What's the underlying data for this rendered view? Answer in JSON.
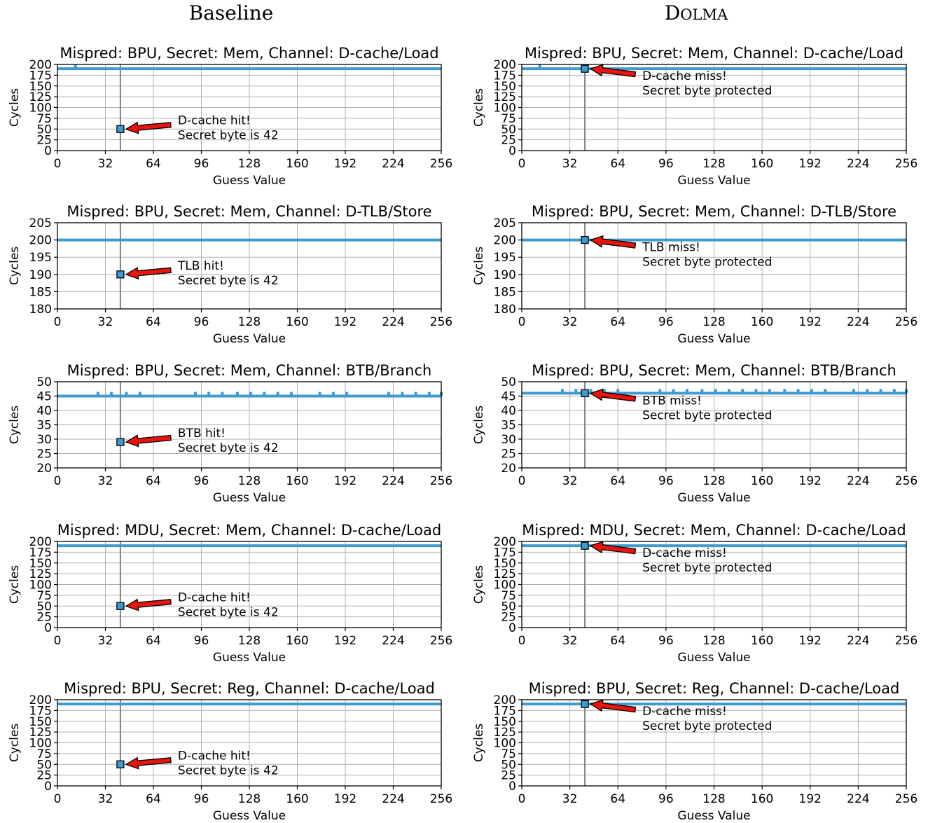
{
  "column_titles": {
    "left": "Baseline",
    "right": "DOLMA"
  },
  "chart_data": [
    {
      "type": "line",
      "col": 0,
      "row": 0,
      "title": "Mispred: BPU, Secret: Mem, Channel: D-cache/Load",
      "xlabel": "Guess Value",
      "ylabel": "Cycles",
      "xlim": [
        0,
        256
      ],
      "ylim": [
        0,
        200
      ],
      "xticks": [
        0,
        32,
        64,
        96,
        128,
        160,
        192,
        224,
        256
      ],
      "yticks": [
        0,
        25,
        50,
        75,
        100,
        125,
        150,
        175,
        200
      ],
      "baseline_value": 190,
      "bump_x": [
        12
      ],
      "highlight": {
        "x": 42,
        "y": 50
      },
      "annotation": [
        "D-cache hit!",
        "Secret byte is 42"
      ],
      "grid": true
    },
    {
      "type": "line",
      "col": 1,
      "row": 0,
      "title": "Mispred: BPU, Secret: Mem, Channel: D-cache/Load",
      "xlabel": "Guess Value",
      "ylabel": "Cycles",
      "xlim": [
        0,
        256
      ],
      "ylim": [
        0,
        200
      ],
      "xticks": [
        0,
        32,
        64,
        96,
        128,
        160,
        192,
        224,
        256
      ],
      "yticks": [
        0,
        25,
        50,
        75,
        100,
        125,
        150,
        175,
        200
      ],
      "baseline_value": 190,
      "bump_x": [
        12
      ],
      "highlight": {
        "x": 42,
        "y": 190
      },
      "annotation": [
        "D-cache miss!",
        "Secret byte protected"
      ],
      "grid": true
    },
    {
      "type": "line",
      "col": 0,
      "row": 1,
      "title": "Mispred: BPU, Secret: Mem, Channel: D-TLB/Store",
      "xlabel": "Guess Value",
      "ylabel": "Cycles",
      "xlim": [
        0,
        256
      ],
      "ylim": [
        180,
        205
      ],
      "xticks": [
        0,
        32,
        64,
        96,
        128,
        160,
        192,
        224,
        256
      ],
      "yticks": [
        180,
        185,
        190,
        195,
        200,
        205
      ],
      "baseline_value": 200,
      "bump_x": [],
      "highlight": {
        "x": 42,
        "y": 190
      },
      "annotation": [
        "TLB hit!",
        "Secret byte is 42"
      ],
      "grid": true
    },
    {
      "type": "line",
      "col": 1,
      "row": 1,
      "title": "Mispred: BPU, Secret: Mem, Channel: D-TLB/Store",
      "xlabel": "Guess Value",
      "ylabel": "Cycles",
      "xlim": [
        0,
        256
      ],
      "ylim": [
        180,
        205
      ],
      "xticks": [
        0,
        32,
        64,
        96,
        128,
        160,
        192,
        224,
        256
      ],
      "yticks": [
        180,
        185,
        190,
        195,
        200,
        205
      ],
      "baseline_value": 200,
      "bump_x": [],
      "highlight": {
        "x": 42,
        "y": 200
      },
      "annotation": [
        "TLB miss!",
        "Secret byte protected"
      ],
      "grid": true
    },
    {
      "type": "line",
      "col": 0,
      "row": 2,
      "title": "Mispred: BPU, Secret: Mem, Channel: BTB/Branch",
      "xlabel": "Guess Value",
      "ylabel": "Cycles",
      "xlim": [
        0,
        256
      ],
      "ylim": [
        20,
        50
      ],
      "xticks": [
        0,
        32,
        64,
        96,
        128,
        160,
        192,
        224,
        256
      ],
      "yticks": [
        20,
        25,
        30,
        35,
        40,
        45,
        50
      ],
      "baseline_value": 45,
      "bump_x": [
        27,
        36,
        46,
        55,
        92,
        101,
        110,
        120,
        129,
        138,
        147,
        156,
        175,
        184,
        193,
        221,
        230,
        239,
        248,
        256
      ],
      "highlight": {
        "x": 42,
        "y": 29
      },
      "annotation": [
        "BTB hit!",
        "Secret byte is 42"
      ],
      "grid": true
    },
    {
      "type": "line",
      "col": 1,
      "row": 2,
      "title": "Mispred: BPU, Secret: Mem, Channel: BTB/Branch",
      "xlabel": "Guess Value",
      "ylabel": "Cycles",
      "xlim": [
        0,
        256
      ],
      "ylim": [
        20,
        50
      ],
      "xticks": [
        0,
        32,
        64,
        96,
        128,
        160,
        192,
        224,
        256
      ],
      "yticks": [
        20,
        25,
        30,
        35,
        40,
        45,
        50
      ],
      "baseline_value": 46,
      "bump_x": [
        27,
        36,
        46,
        55,
        64,
        92,
        101,
        110,
        120,
        129,
        138,
        147,
        156,
        165,
        175,
        184,
        193,
        202,
        221,
        230,
        239,
        248,
        256
      ],
      "highlight": {
        "x": 42,
        "y": 46
      },
      "annotation": [
        "BTB miss!",
        "Secret byte protected"
      ],
      "grid": true
    },
    {
      "type": "line",
      "col": 0,
      "row": 3,
      "title": "Mispred: MDU, Secret: Mem, Channel: D-cache/Load",
      "xlabel": "Guess Value",
      "ylabel": "Cycles",
      "xlim": [
        0,
        256
      ],
      "ylim": [
        0,
        200
      ],
      "xticks": [
        0,
        32,
        64,
        96,
        128,
        160,
        192,
        224,
        256
      ],
      "yticks": [
        0,
        25,
        50,
        75,
        100,
        125,
        150,
        175,
        200
      ],
      "baseline_value": 190,
      "bump_x": [],
      "highlight": {
        "x": 42,
        "y": 50
      },
      "annotation": [
        "D-cache hit!",
        "Secret byte is 42"
      ],
      "grid": true
    },
    {
      "type": "line",
      "col": 1,
      "row": 3,
      "title": "Mispred: MDU, Secret: Mem, Channel: D-cache/Load",
      "xlabel": "Guess Value",
      "ylabel": "Cycles",
      "xlim": [
        0,
        256
      ],
      "ylim": [
        0,
        200
      ],
      "xticks": [
        0,
        32,
        64,
        96,
        128,
        160,
        192,
        224,
        256
      ],
      "yticks": [
        0,
        25,
        50,
        75,
        100,
        125,
        150,
        175,
        200
      ],
      "baseline_value": 190,
      "bump_x": [],
      "highlight": {
        "x": 42,
        "y": 190
      },
      "annotation": [
        "D-cache miss!",
        "Secret byte protected"
      ],
      "grid": true
    },
    {
      "type": "line",
      "col": 0,
      "row": 4,
      "title": "Mispred: BPU, Secret: Reg, Channel: D-cache/Load",
      "xlabel": "Guess Value",
      "ylabel": "Cycles",
      "xlim": [
        0,
        256
      ],
      "ylim": [
        0,
        200
      ],
      "xticks": [
        0,
        32,
        64,
        96,
        128,
        160,
        192,
        224,
        256
      ],
      "yticks": [
        0,
        25,
        50,
        75,
        100,
        125,
        150,
        175,
        200
      ],
      "baseline_value": 190,
      "bump_x": [],
      "highlight": {
        "x": 42,
        "y": 50
      },
      "annotation": [
        "D-cache hit!",
        "Secret byte is 42"
      ],
      "grid": true
    },
    {
      "type": "line",
      "col": 1,
      "row": 4,
      "title": "Mispred: BPU, Secret: Reg, Channel: D-cache/Load",
      "xlabel": "Guess Value",
      "ylabel": "Cycles",
      "xlim": [
        0,
        256
      ],
      "ylim": [
        0,
        200
      ],
      "xticks": [
        0,
        32,
        64,
        96,
        128,
        160,
        192,
        224,
        256
      ],
      "yticks": [
        0,
        25,
        50,
        75,
        100,
        125,
        150,
        175,
        200
      ],
      "baseline_value": 190,
      "bump_x": [],
      "highlight": {
        "x": 42,
        "y": 190
      },
      "annotation": [
        "D-cache miss!",
        "Secret byte protected"
      ],
      "grid": true
    }
  ]
}
